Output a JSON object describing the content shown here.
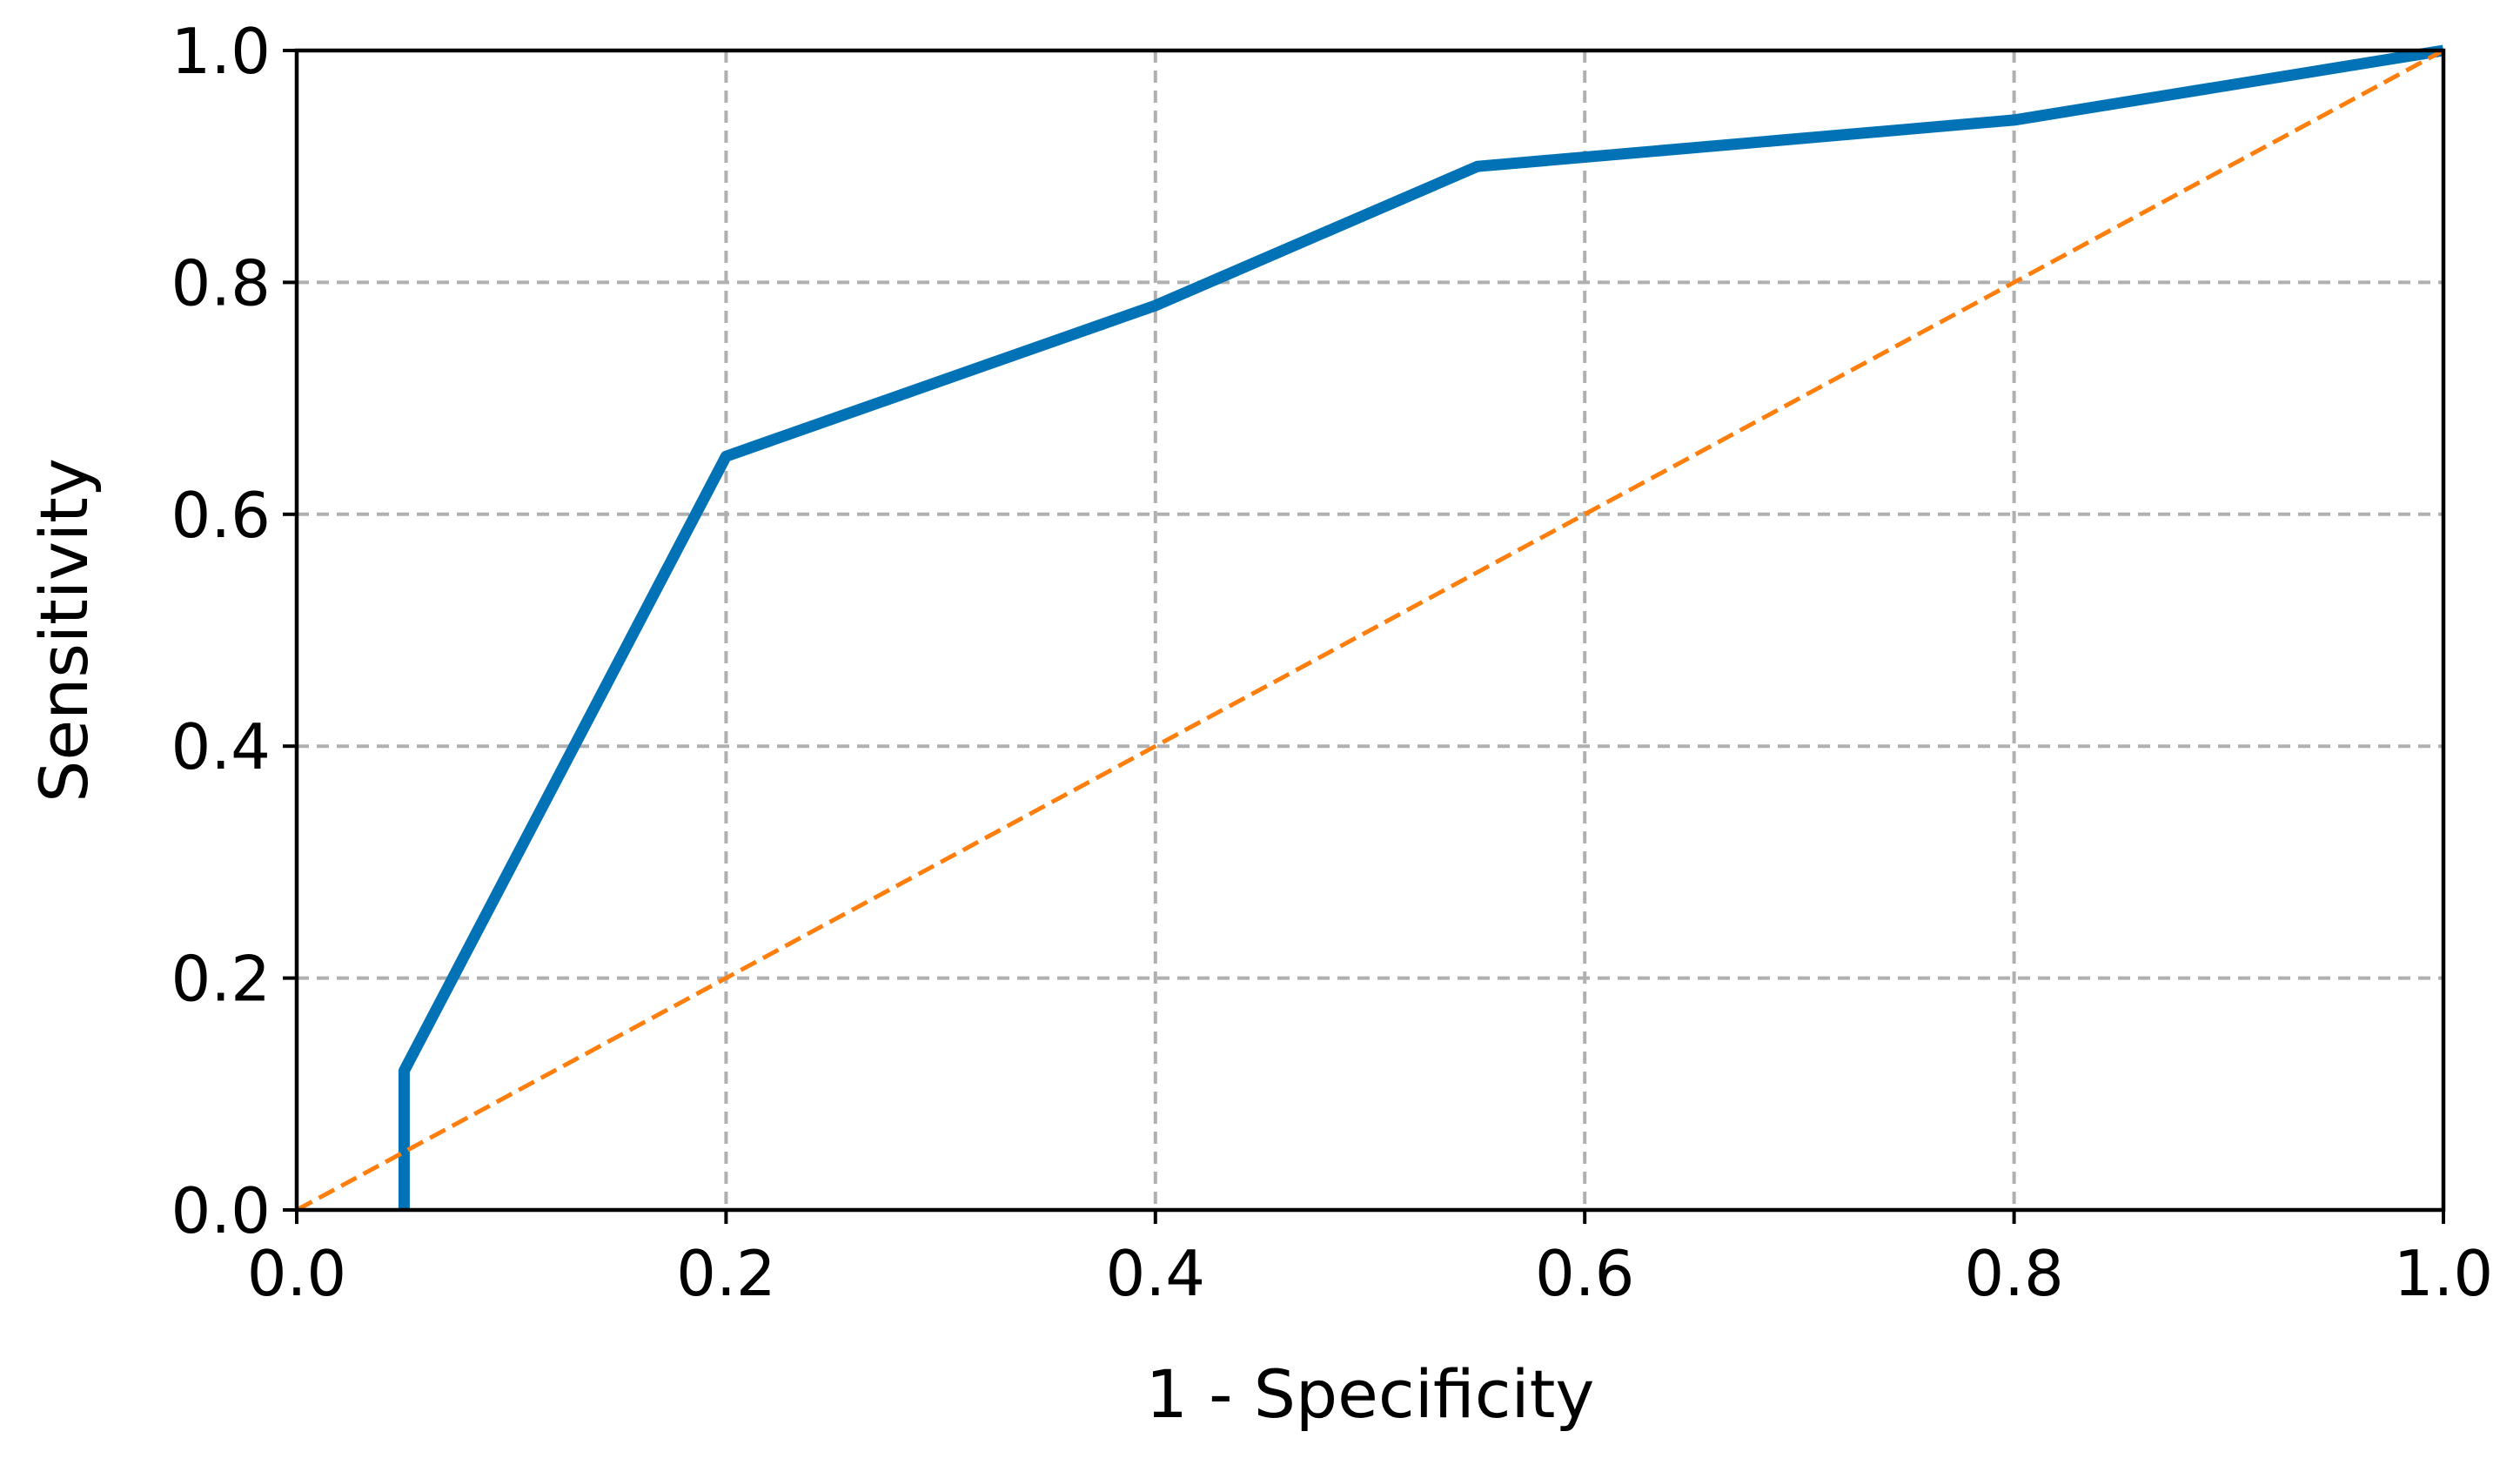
{
  "chart_data": {
    "type": "line",
    "title": "",
    "xlabel": "1 - Specificity",
    "ylabel": "Sensitivity",
    "xlim": [
      0.0,
      1.0
    ],
    "ylim": [
      0.0,
      1.0
    ],
    "x_ticks": [
      "0.0",
      "0.2",
      "0.4",
      "0.6",
      "0.8",
      "1.0"
    ],
    "y_ticks": [
      "0.0",
      "0.2",
      "0.4",
      "0.6",
      "0.8",
      "1.0"
    ],
    "grid": true,
    "legend": "none",
    "series": [
      {
        "key": "roc",
        "style": "solid",
        "color": "#0072b5",
        "x": [
          0.05,
          0.05,
          0.2,
          0.4,
          0.55,
          0.8,
          1.0
        ],
        "y": [
          0.0,
          0.12,
          0.65,
          0.78,
          0.9,
          0.94,
          1.0
        ]
      },
      {
        "key": "reference",
        "style": "dashed",
        "color": "#ff7f0e",
        "x": [
          0.0,
          1.0
        ],
        "y": [
          0.0,
          1.0
        ]
      }
    ]
  }
}
